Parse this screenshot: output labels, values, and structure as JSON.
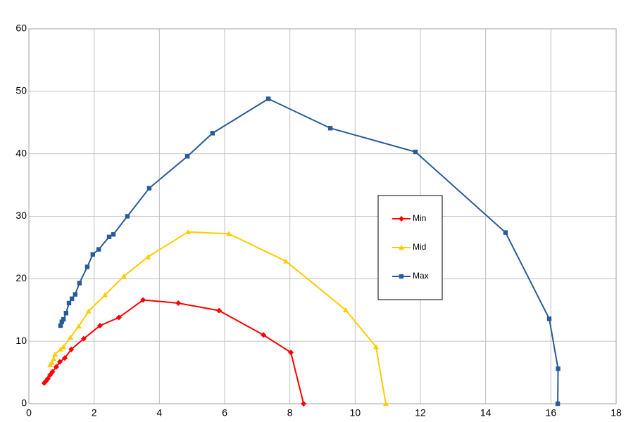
{
  "chart_data": {
    "type": "scatter",
    "lines": true,
    "grid": true,
    "legend": "center-right",
    "xlim": [
      0,
      18
    ],
    "xticks": [
      0,
      2,
      4,
      6,
      8,
      10,
      12,
      14,
      16,
      18
    ],
    "ylim": [
      0,
      60
    ],
    "yticks": [
      0,
      10,
      20,
      30,
      40,
      50,
      60
    ],
    "series": [
      {
        "name": "Min",
        "color": "#ff0000",
        "marker": "diamond",
        "x": [
          0.47,
          0.52,
          0.58,
          0.65,
          0.72,
          0.84,
          0.95,
          1.1,
          1.3,
          1.68,
          2.18,
          2.76,
          3.5,
          4.58,
          5.83,
          7.19,
          8.03,
          8.42
        ],
        "values": [
          3.3,
          3.6,
          4.0,
          4.6,
          5.1,
          5.9,
          6.7,
          7.3,
          8.7,
          10.4,
          12.5,
          13.8,
          16.6,
          16.1,
          14.9,
          11.0,
          8.2,
          0
        ]
      },
      {
        "name": "Mid",
        "color": "#ffcc00",
        "marker": "triangle",
        "x": [
          0.65,
          0.7,
          0.76,
          0.8,
          0.97,
          1.06,
          1.27,
          1.53,
          1.83,
          2.33,
          2.91,
          3.65,
          4.88,
          6.13,
          7.88,
          9.71,
          10.64,
          10.94
        ],
        "values": [
          6.2,
          6.6,
          7.2,
          7.9,
          8.7,
          9.1,
          10.6,
          12.4,
          14.8,
          17.4,
          20.4,
          23.5,
          27.5,
          27.2,
          22.8,
          15.0,
          9.1,
          0
        ]
      },
      {
        "name": "Max",
        "color": "#285b9a",
        "marker": "square",
        "x": [
          0.97,
          1.01,
          1.06,
          1.14,
          1.23,
          1.32,
          1.42,
          1.55,
          1.79,
          1.96,
          2.14,
          2.46,
          2.59,
          3.02,
          3.69,
          4.86,
          5.63,
          7.34,
          9.24,
          11.85,
          14.61,
          15.95,
          16.22,
          16.21
        ],
        "values": [
          12.5,
          13.1,
          13.5,
          14.5,
          16.1,
          16.8,
          17.5,
          19.3,
          21.9,
          23.9,
          24.7,
          26.7,
          27.1,
          30.0,
          34.5,
          39.6,
          43.3,
          48.8,
          44.1,
          40.3,
          27.4,
          13.6,
          5.6,
          0
        ]
      }
    ]
  }
}
